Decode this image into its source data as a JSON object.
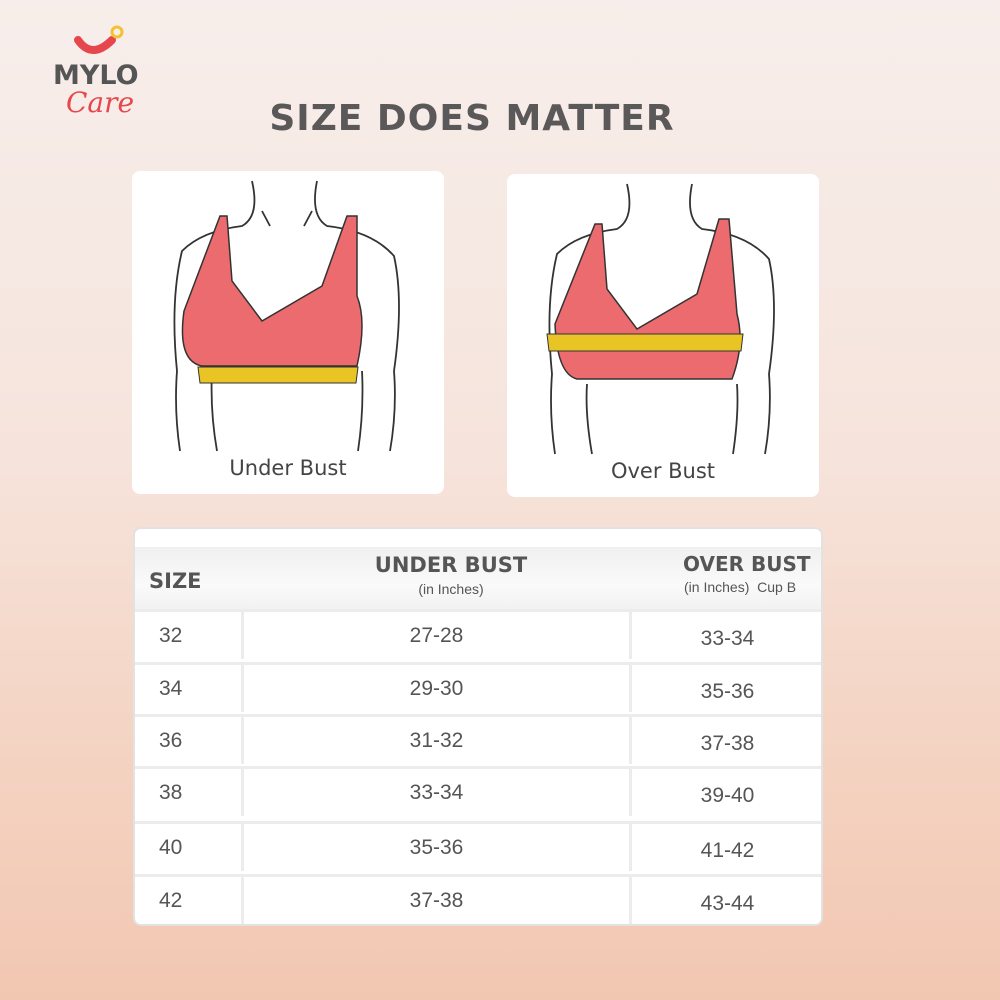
{
  "brand": {
    "logo_text": "MYLO",
    "logo_sub": "Care"
  },
  "title": "SIZE DOES MATTER",
  "cards": [
    {
      "caption": "Under Bust"
    },
    {
      "caption": "Over Bust"
    }
  ],
  "colors": {
    "bra": "#ec6b6e",
    "tape": "#e8c425",
    "text": "#555555"
  },
  "table": {
    "headers": {
      "size": "SIZE",
      "under": "UNDER BUST",
      "under_sub": "(in Inches)",
      "over": "OVER BUST",
      "over_sub": "(in Inches)  Cup B"
    },
    "rows": [
      {
        "size": "32",
        "under": "27-28",
        "over": "33-34"
      },
      {
        "size": "34",
        "under": "29-30",
        "over": "35-36"
      },
      {
        "size": "36",
        "under": "31-32",
        "over": "37-38"
      },
      {
        "size": "38",
        "under": "33-34",
        "over": "39-40"
      },
      {
        "size": "40",
        "under": "35-36",
        "over": "41-42"
      },
      {
        "size": "42",
        "under": "37-38",
        "over": "43-44"
      }
    ]
  }
}
